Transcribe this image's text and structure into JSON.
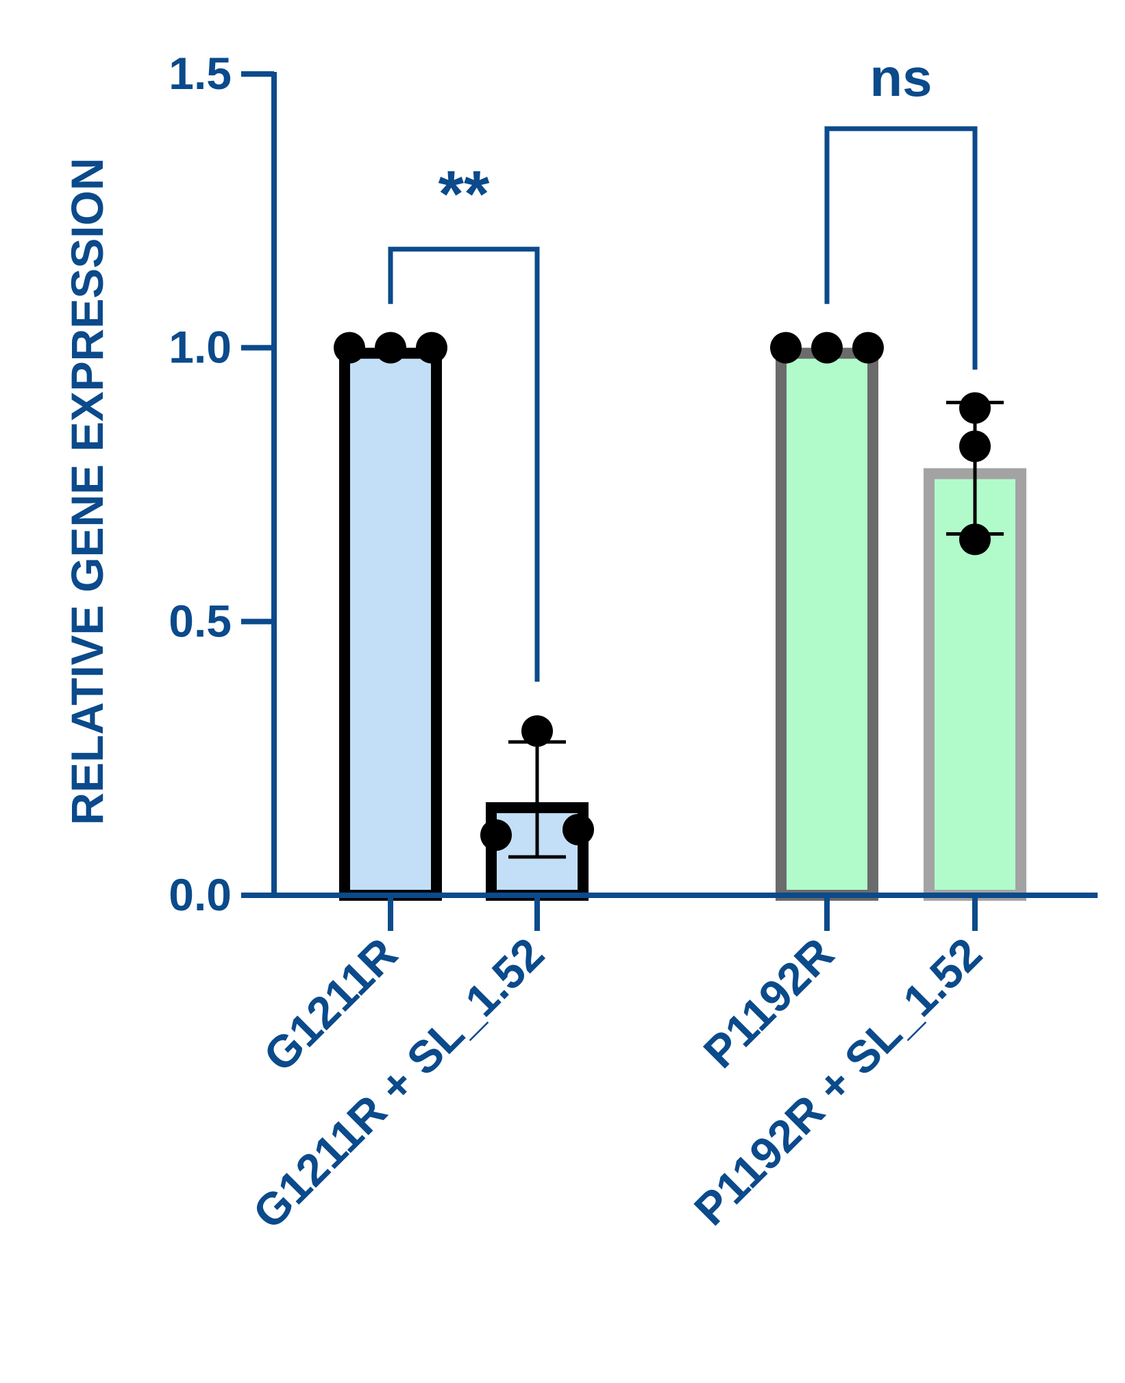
{
  "chart_data": {
    "type": "bar",
    "ylabel": "RELATIVE GENE EXPRESSION",
    "ylim": [
      0,
      1.5
    ],
    "yticks": [
      {
        "value": 0.0,
        "label": "0.0"
      },
      {
        "value": 0.5,
        "label": "0.5"
      },
      {
        "value": 1.0,
        "label": "1.0"
      },
      {
        "value": 1.5,
        "label": "1.5"
      }
    ],
    "categories": [
      "G1211R",
      "G1211R + SL_1.52",
      "P1192R",
      "P1192R + SL_1.52"
    ],
    "values": [
      1.0,
      0.17,
      1.0,
      0.78
    ],
    "error_low": [
      1.0,
      0.07,
      1.0,
      0.66
    ],
    "error_high": [
      1.0,
      0.28,
      1.0,
      0.9
    ],
    "points": [
      [
        1.0,
        1.0,
        1.0
      ],
      [
        0.3,
        0.11,
        0.12
      ],
      [
        1.0,
        1.0,
        1.0
      ],
      [
        0.89,
        0.82,
        0.65
      ]
    ],
    "colors": {
      "fills": [
        "#c3dff7",
        "#c3dff7",
        "#b1fbcb",
        "#b1fbcb"
      ],
      "edges": [
        "#000000",
        "#000000",
        "#6b6b6b",
        "#a3a3a3"
      ],
      "axis": "#0b4a8b",
      "points": "#000000"
    },
    "significance": [
      {
        "from": 0,
        "to": 1,
        "label": "**",
        "bracket_y": 1.18,
        "left_tip": 1.08,
        "right_tip": 0.39
      },
      {
        "from": 2,
        "to": 3,
        "label": "ns",
        "bracket_y": 1.4,
        "left_tip": 1.08,
        "right_tip": 0.96
      }
    ]
  }
}
